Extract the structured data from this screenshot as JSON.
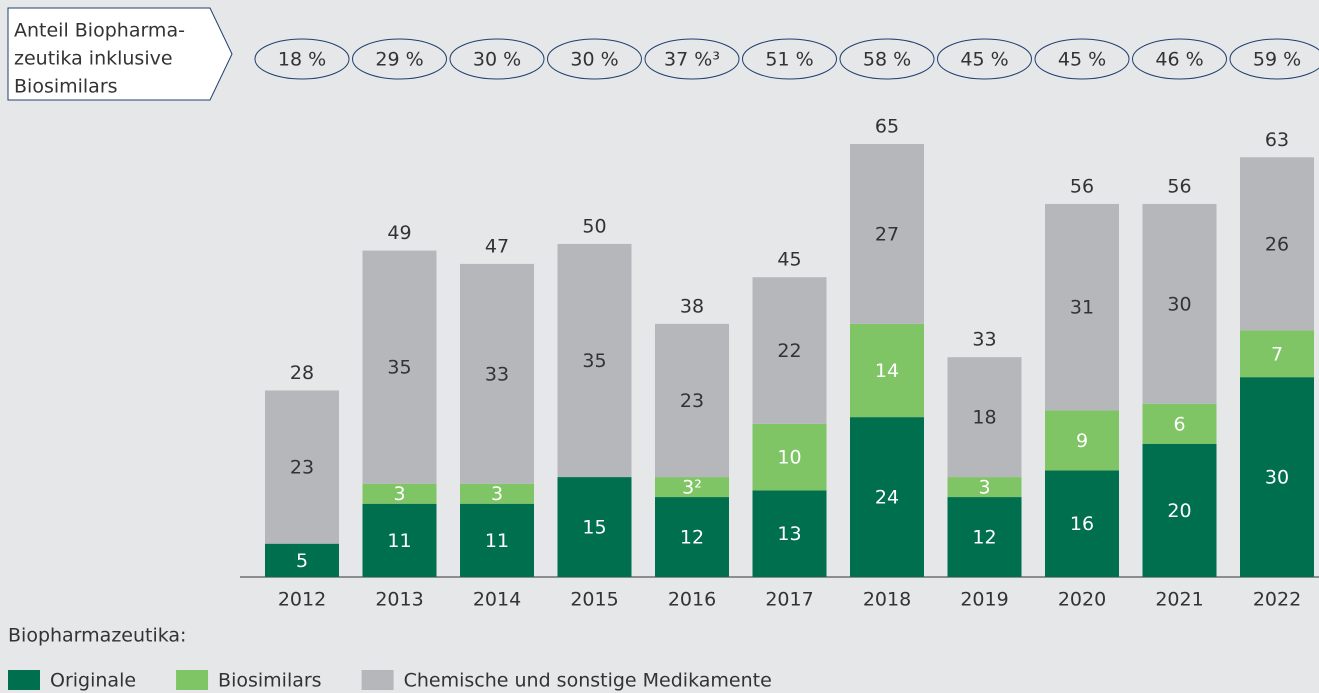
{
  "chart_data": {
    "type": "stacked-bar",
    "categories": [
      "2012",
      "2013",
      "2014",
      "2015",
      "2016",
      "2017",
      "2018",
      "2019",
      "2020",
      "2021",
      "2022"
    ],
    "series": [
      {
        "name": "Originale",
        "color": "#006f4e",
        "text_color": "#ffffff",
        "values": [
          5,
          11,
          11,
          15,
          12,
          13,
          24,
          12,
          16,
          20,
          30
        ]
      },
      {
        "name": "Biosimilars",
        "color": "#80c565",
        "text_color": "#ffffff",
        "values": [
          null,
          3,
          3,
          null,
          3,
          10,
          14,
          3,
          9,
          6,
          7
        ],
        "value_labels": [
          null,
          null,
          null,
          null,
          "3²",
          null,
          null,
          null,
          null,
          null,
          null
        ]
      },
      {
        "name": "Chemische und sonstige Medikamente",
        "color": "#b5b7bb",
        "text_color": "#333333",
        "values": [
          23,
          35,
          33,
          35,
          23,
          22,
          27,
          18,
          31,
          30,
          26
        ]
      }
    ],
    "totals": [
      28,
      49,
      47,
      50,
      38,
      45,
      65,
      33,
      56,
      56,
      63
    ],
    "shares": {
      "label": [
        "Anteil Biopharma-",
        "zeutika inklusive",
        "Biosimilars"
      ],
      "values": [
        18,
        29,
        30,
        30,
        37,
        51,
        58,
        45,
        45,
        46,
        59
      ],
      "value_labels": [
        "18 %",
        "29 %",
        "30 %",
        "30 %",
        "37 %³",
        "51 %",
        "58 %",
        "45 %",
        "45 %",
        "46 %",
        "59 %"
      ]
    },
    "legend_title": "Biopharmazeutika:"
  }
}
